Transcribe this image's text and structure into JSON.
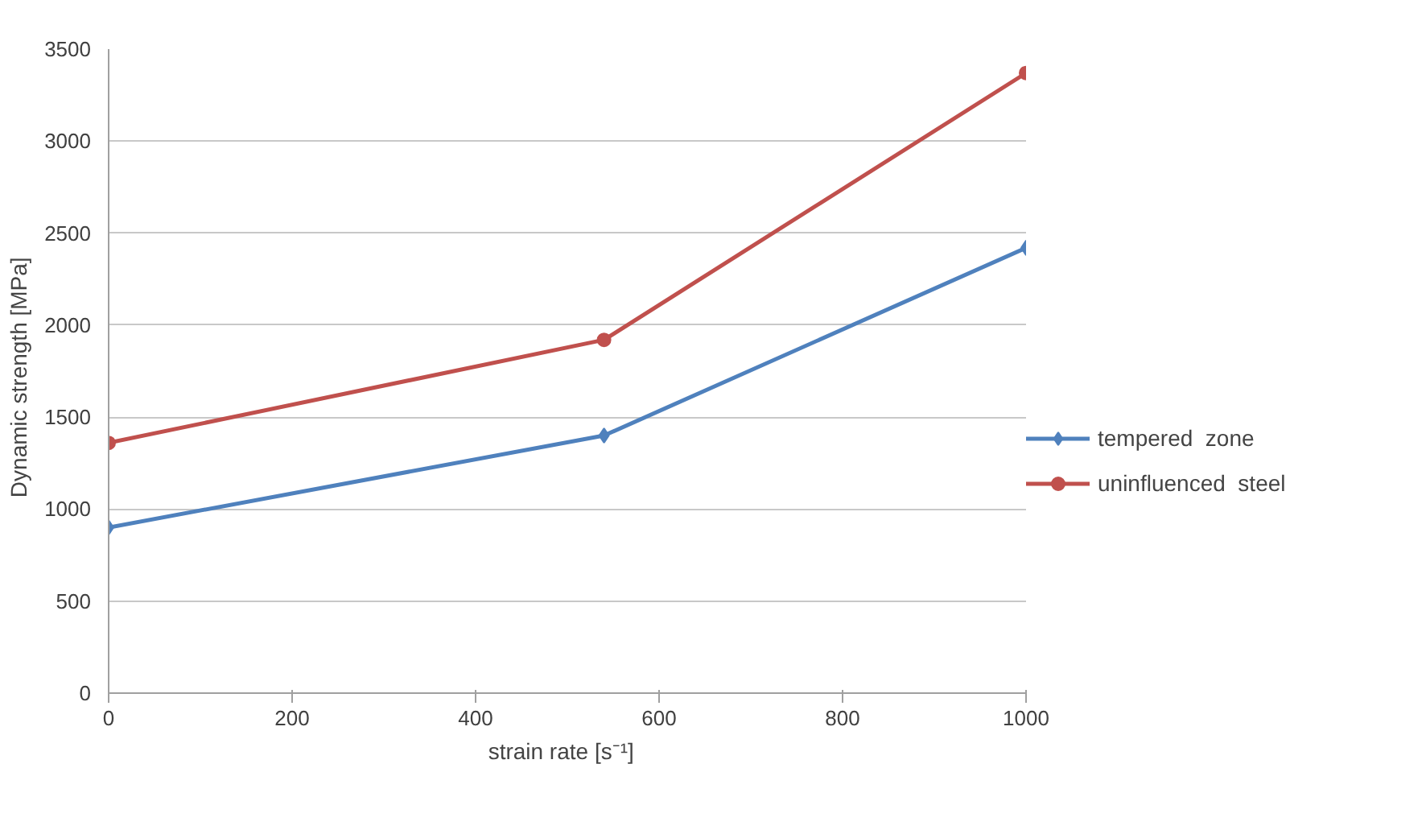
{
  "chart_data": {
    "type": "line",
    "xlabel": "strain rate   [s⁻¹]",
    "ylabel": "Dynamic  strength  [MPa]",
    "x": [
      0,
      540,
      1000
    ],
    "series": [
      {
        "name": "tempered  zone",
        "color": "#4f81bd",
        "marker": "diamond",
        "values": [
          900,
          1400,
          2420
        ]
      },
      {
        "name": "uninfluenced  steel",
        "color": "#c0504d",
        "marker": "circle",
        "values": [
          1360,
          1920,
          3370
        ]
      }
    ],
    "xlim": [
      0,
      1000
    ],
    "xticks": [
      0,
      200,
      400,
      600,
      800,
      1000
    ],
    "ylim": [
      0,
      3500
    ],
    "yticks": [
      0,
      500,
      1000,
      1500,
      2000,
      2500,
      3000,
      3500
    ],
    "grid": "y",
    "legend": "right"
  }
}
